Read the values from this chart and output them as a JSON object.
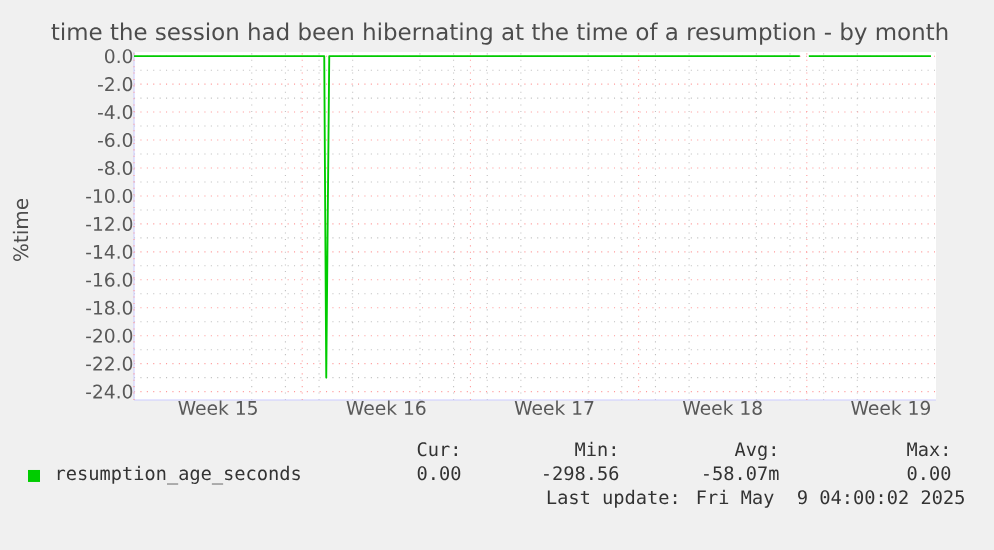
{
  "chart_data": {
    "type": "line",
    "title": "time the session had been hibernating at the time of a resumption - by month",
    "ylabel": "%time",
    "x": [
      "2025-04-07T00:00",
      "2025-04-14T22:00",
      "2025-04-15T00:00",
      "2025-04-15T03:00",
      "2025-05-04T17:00",
      "2025-05-04T23:00",
      "2025-05-05T02:00",
      "2025-05-10T04:00"
    ],
    "series": [
      {
        "name": "resumption_age_seconds",
        "color": "#00cc00",
        "values": [
          0,
          0,
          -23,
          0,
          0,
          null,
          0,
          0
        ]
      }
    ],
    "xlim": [
      "2025-04-07T00:00",
      "2025-05-10T09:00"
    ],
    "ylim": [
      -24.6,
      0.3
    ],
    "xticks": [
      {
        "value": "2025-04-07T00:00",
        "label": null
      },
      {
        "value": "2025-04-10T12:00",
        "label": "Week 15"
      },
      {
        "value": "2025-04-14T00:00",
        "label": null
      },
      {
        "value": "2025-04-17T12:00",
        "label": "Week 16"
      },
      {
        "value": "2025-04-21T00:00",
        "label": null
      },
      {
        "value": "2025-04-24T12:00",
        "label": "Week 17"
      },
      {
        "value": "2025-04-28T00:00",
        "label": null
      },
      {
        "value": "2025-05-01T12:00",
        "label": "Week 18"
      },
      {
        "value": "2025-05-05T00:00",
        "label": null
      },
      {
        "value": "2025-05-08T12:00",
        "label": "Week 19"
      }
    ],
    "yticks": [
      {
        "value": 0,
        "label": "0.0"
      },
      {
        "value": -2,
        "label": "-2.0"
      },
      {
        "value": -4,
        "label": "-4.0"
      },
      {
        "value": -6,
        "label": "-6.0"
      },
      {
        "value": -8,
        "label": "-8.0"
      },
      {
        "value": -10,
        "label": "-10.0"
      },
      {
        "value": -12,
        "label": "-12.0"
      },
      {
        "value": -14,
        "label": "-14.0"
      },
      {
        "value": -16,
        "label": "-16.0"
      },
      {
        "value": -18,
        "label": "-18.0"
      },
      {
        "value": -20,
        "label": "-20.0"
      },
      {
        "value": -22,
        "label": "-22.0"
      },
      {
        "value": -24,
        "label": "-24.0"
      }
    ],
    "grid": true,
    "legend": "bottom",
    "marker": "none",
    "line_style": "solid",
    "annotations": [
      "Cur:",
      "Min:",
      "Avg:",
      "Max:",
      "0.00",
      "-298.56",
      "-58.07m",
      "0.00",
      "Last update: Fri May  9 04:00:02 2025"
    ]
  }
}
